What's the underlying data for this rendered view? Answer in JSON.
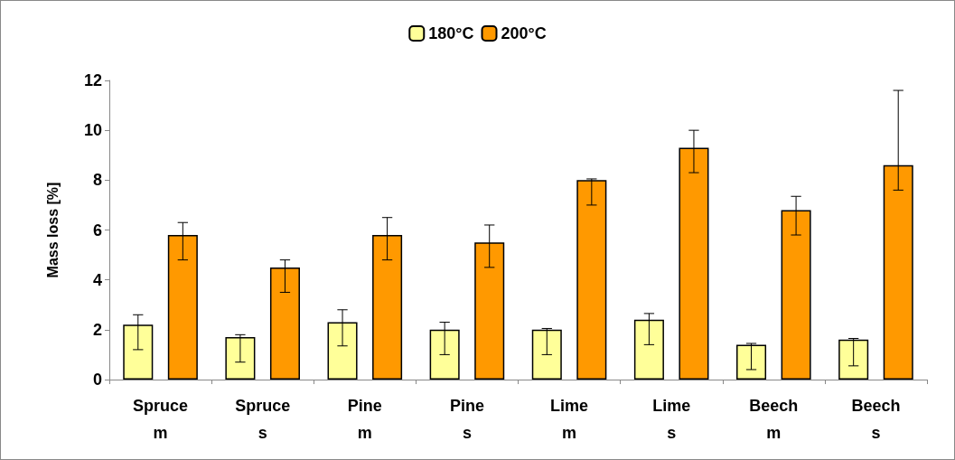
{
  "chart_data": {
    "type": "bar",
    "ylabel": "Mass loss [%]",
    "categories": [
      "Spruce\nm",
      "Spruce\ns",
      "Pine\nm",
      "Pine\ns",
      "Lime\nm",
      "Lime\ns",
      "Beech\nm",
      "Beech\ns"
    ],
    "series": [
      {
        "name": "180°C",
        "color": "#ffff99",
        "values": [
          2.2,
          1.7,
          2.3,
          2.0,
          2.0,
          2.4,
          1.4,
          1.6
        ],
        "errors": [
          [
            1.2,
            2.6
          ],
          [
            0.7,
            1.8
          ],
          [
            1.35,
            2.8
          ],
          [
            1.0,
            2.3
          ],
          [
            1.0,
            2.05
          ],
          [
            1.4,
            2.65
          ],
          [
            0.4,
            1.45
          ],
          [
            0.55,
            1.65
          ]
        ]
      },
      {
        "name": "200°C",
        "color": "#ff9900",
        "values": [
          5.8,
          4.5,
          5.8,
          5.5,
          8.0,
          9.3,
          6.8,
          8.6
        ],
        "errors": [
          [
            4.8,
            6.3
          ],
          [
            3.5,
            4.8
          ],
          [
            4.8,
            6.5
          ],
          [
            4.5,
            6.2
          ],
          [
            7.0,
            8.05
          ],
          [
            8.3,
            10.0
          ],
          [
            5.8,
            7.35
          ],
          [
            7.6,
            11.6
          ]
        ]
      }
    ],
    "ylim": [
      0,
      12
    ],
    "yticks": [
      0,
      2,
      4,
      6,
      8,
      10,
      12
    ],
    "grid": false,
    "legend": "top"
  }
}
